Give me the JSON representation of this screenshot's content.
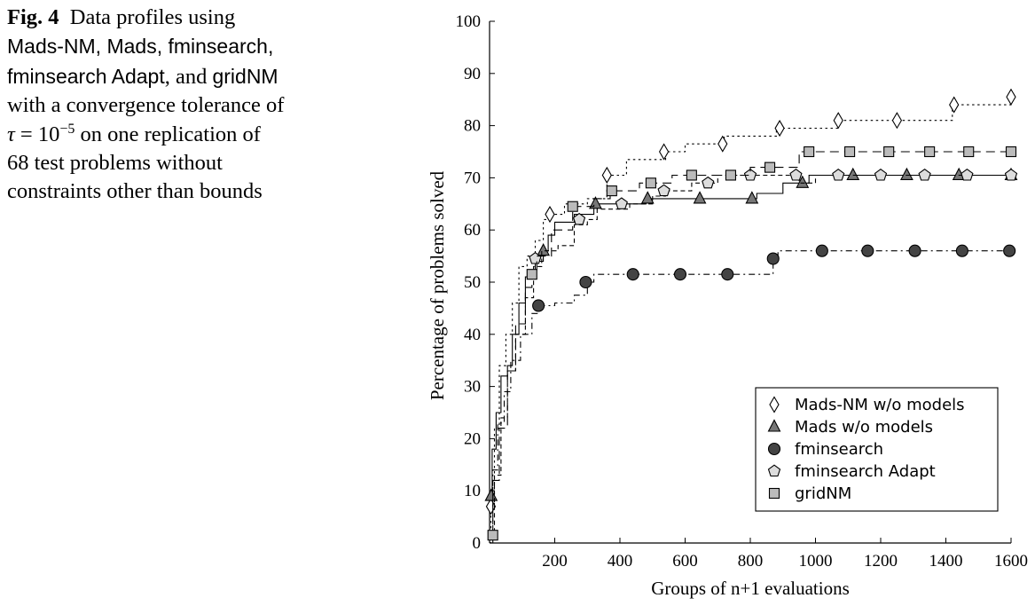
{
  "caption": {
    "fig_label": "Fig. 4",
    "line1_rest": "Data profiles using",
    "line2": "Mads-NM, Mads, fminsearch,",
    "line3a": "fminsearch Adapt",
    "line3b": ", and ",
    "line3c": "gridNM",
    "line4": "with a convergence tolerance of",
    "tau": "τ",
    "eq": " = 10",
    "exp": "−5",
    "line5_rest": " on one replication of",
    "line6": "68 test problems without",
    "line7": "constraints other than bounds"
  },
  "chart_data": {
    "type": "line",
    "step": true,
    "xlabel": "Groups of n+1 evaluations",
    "ylabel": "Percentage of problems solved",
    "xlim": [
      0,
      1600
    ],
    "ylim": [
      0,
      100
    ],
    "xticks": [
      200,
      400,
      600,
      800,
      1000,
      1200,
      1400,
      1600
    ],
    "yticks": [
      0,
      10,
      20,
      30,
      40,
      50,
      60,
      70,
      80,
      90,
      100
    ],
    "grid": false,
    "legend_position": "bottom-right",
    "series": [
      {
        "name": "Mads-NM w/o models",
        "marker": "diamond",
        "line_style": "dotted",
        "marker_fill": "#ffffff",
        "line": [
          [
            0,
            0
          ],
          [
            4,
            7
          ],
          [
            15,
            22
          ],
          [
            30,
            34
          ],
          [
            50,
            40
          ],
          [
            70,
            46
          ],
          [
            90,
            53
          ],
          [
            115,
            55
          ],
          [
            140,
            58
          ],
          [
            165,
            62
          ],
          [
            185,
            63
          ],
          [
            230,
            65
          ],
          [
            300,
            66
          ],
          [
            360,
            70.5
          ],
          [
            420,
            73.5
          ],
          [
            540,
            75
          ],
          [
            600,
            76.5
          ],
          [
            700,
            76.5
          ],
          [
            720,
            78
          ],
          [
            880,
            79.5
          ],
          [
            1070,
            81
          ],
          [
            1420,
            84
          ],
          [
            1600,
            85.5
          ]
        ],
        "markers": [
          [
            4,
            7
          ],
          [
            185,
            63
          ],
          [
            360,
            70.5
          ],
          [
            535,
            75
          ],
          [
            715,
            76.5
          ],
          [
            890,
            79.5
          ],
          [
            1070,
            81
          ],
          [
            1250,
            81
          ],
          [
            1425,
            84
          ],
          [
            1600,
            85.5
          ]
        ]
      },
      {
        "name": "Mads w/o models",
        "marker": "triangle",
        "line_style": "solid",
        "marker_fill": "#777777",
        "line": [
          [
            0,
            9
          ],
          [
            8,
            18
          ],
          [
            20,
            25
          ],
          [
            35,
            32
          ],
          [
            55,
            34
          ],
          [
            70,
            40
          ],
          [
            90,
            46
          ],
          [
            110,
            51
          ],
          [
            140,
            54
          ],
          [
            165,
            56
          ],
          [
            180,
            59
          ],
          [
            200,
            61.5
          ],
          [
            260,
            63
          ],
          [
            320,
            65
          ],
          [
            400,
            65
          ],
          [
            480,
            66
          ],
          [
            680,
            66
          ],
          [
            820,
            67
          ],
          [
            900,
            69
          ],
          [
            960,
            69
          ],
          [
            980,
            70.5
          ],
          [
            1600,
            70.5
          ]
        ],
        "markers": [
          [
            5,
            9
          ],
          [
            165,
            56
          ],
          [
            325,
            65
          ],
          [
            485,
            66
          ],
          [
            645,
            66
          ],
          [
            805,
            66
          ],
          [
            960,
            69
          ],
          [
            1115,
            70.5
          ],
          [
            1280,
            70.5
          ],
          [
            1440,
            70.5
          ],
          [
            1600,
            70.5
          ]
        ]
      },
      {
        "name": "fminsearch",
        "marker": "circle",
        "line_style": "dashdot",
        "marker_fill": "#444444",
        "line": [
          [
            0,
            0
          ],
          [
            10,
            14
          ],
          [
            25,
            23
          ],
          [
            45,
            29
          ],
          [
            65,
            35
          ],
          [
            95,
            40
          ],
          [
            130,
            44
          ],
          [
            150,
            45.5
          ],
          [
            200,
            46
          ],
          [
            260,
            47.5
          ],
          [
            300,
            50
          ],
          [
            320,
            51.5
          ],
          [
            860,
            51.5
          ],
          [
            870,
            54.5
          ],
          [
            885,
            56
          ],
          [
            1600,
            56
          ]
        ],
        "markers": [
          [
            150,
            45.5
          ],
          [
            295,
            50
          ],
          [
            440,
            51.5
          ],
          [
            585,
            51.5
          ],
          [
            730,
            51.5
          ],
          [
            870,
            54.5
          ],
          [
            1020,
            56
          ],
          [
            1160,
            56
          ],
          [
            1305,
            56
          ],
          [
            1450,
            56
          ],
          [
            1595,
            56
          ]
        ]
      },
      {
        "name": "fminsearch Adapt",
        "marker": "pentagon",
        "line_style": "dashed",
        "marker_fill": "#dddddd",
        "line": [
          [
            0,
            1.5
          ],
          [
            15,
            13
          ],
          [
            35,
            24
          ],
          [
            55,
            33
          ],
          [
            80,
            40
          ],
          [
            110,
            47
          ],
          [
            135,
            53
          ],
          [
            160,
            56
          ],
          [
            210,
            57
          ],
          [
            260,
            61
          ],
          [
            300,
            62
          ],
          [
            330,
            64
          ],
          [
            430,
            65
          ],
          [
            500,
            66.5
          ],
          [
            540,
            67.5
          ],
          [
            620,
            69
          ],
          [
            660,
            69
          ],
          [
            700,
            70.5
          ],
          [
            940,
            70.5
          ],
          [
            950,
            69
          ],
          [
            1000,
            70.5
          ],
          [
            1600,
            70.5
          ]
        ],
        "markers": [
          [
            140,
            54.5
          ],
          [
            275,
            62
          ],
          [
            405,
            65
          ],
          [
            535,
            67.5
          ],
          [
            670,
            69
          ],
          [
            800,
            70.5
          ],
          [
            940,
            70.5
          ],
          [
            1070,
            70.5
          ],
          [
            1200,
            70.5
          ],
          [
            1335,
            70.5
          ],
          [
            1465,
            70.5
          ],
          [
            1600,
            70.5
          ]
        ]
      },
      {
        "name": "gridNM",
        "marker": "square",
        "line_style": "longdash",
        "marker_fill": "#bbbbbb",
        "line": [
          [
            0,
            1.5
          ],
          [
            10,
            12
          ],
          [
            30,
            22
          ],
          [
            55,
            33
          ],
          [
            80,
            42
          ],
          [
            110,
            49
          ],
          [
            130,
            51.5
          ],
          [
            145,
            55
          ],
          [
            190,
            60
          ],
          [
            255,
            64.5
          ],
          [
            320,
            66
          ],
          [
            370,
            67.5
          ],
          [
            460,
            69
          ],
          [
            560,
            70.5
          ],
          [
            720,
            70.5
          ],
          [
            800,
            72
          ],
          [
            920,
            72
          ],
          [
            950,
            75
          ],
          [
            1600,
            75
          ]
        ],
        "markers": [
          [
            10,
            1.5
          ],
          [
            130,
            51.5
          ],
          [
            255,
            64.5
          ],
          [
            375,
            67.5
          ],
          [
            495,
            69
          ],
          [
            620,
            70.5
          ],
          [
            740,
            70.5
          ],
          [
            860,
            72
          ],
          [
            980,
            75
          ],
          [
            1105,
            75
          ],
          [
            1225,
            75
          ],
          [
            1350,
            75
          ],
          [
            1470,
            75
          ],
          [
            1600,
            75
          ]
        ]
      }
    ]
  }
}
